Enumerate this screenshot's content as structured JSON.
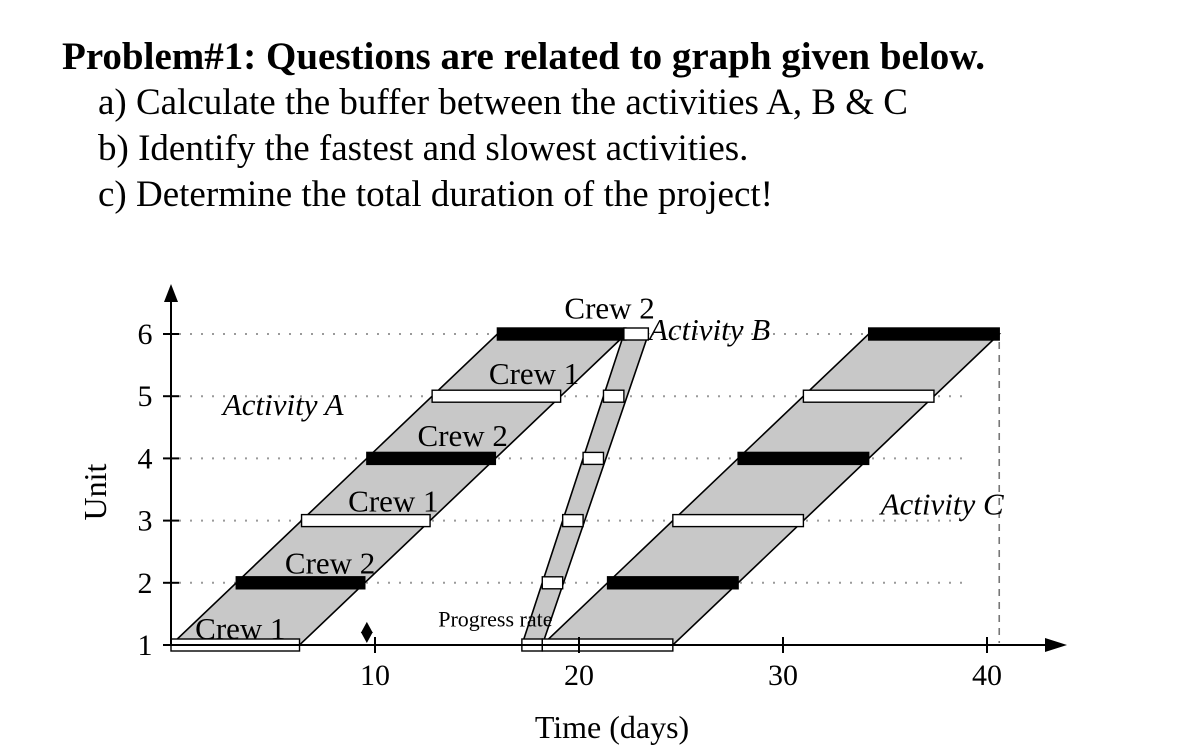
{
  "problem": {
    "title": "Problem#1: Questions are related to graph given below.",
    "questions": [
      "a) Calculate the buffer between the activities A, B & C",
      "b) Identify the fastest and slowest activities.",
      "c) Determine the total duration of the project!"
    ]
  },
  "chart_data": {
    "type": "area",
    "xlabel": "Time (days)",
    "ylabel": "Unit",
    "x_ticks": [
      10,
      20,
      30,
      40
    ],
    "y_ticks": [
      1,
      2,
      3,
      4,
      5,
      6
    ],
    "xlim": [
      0,
      43
    ],
    "ylim": [
      1,
      6.4
    ],
    "grid": "dotted horizontal lines at units 2-6",
    "series": [
      {
        "name": "Activity A",
        "fill": "#c8c8c8",
        "bars": [
          {
            "unit": 1,
            "start": 0,
            "end": 6.3,
            "crew": "Crew 1"
          },
          {
            "unit": 2,
            "start": 3.2,
            "end": 9.5,
            "crew": "Crew 2"
          },
          {
            "unit": 3,
            "start": 6.4,
            "end": 12.7,
            "crew": "Crew 1"
          },
          {
            "unit": 4,
            "start": 9.6,
            "end": 15.9,
            "crew": "Crew 2"
          },
          {
            "unit": 5,
            "start": 12.8,
            "end": 19.1,
            "crew": "Crew 1"
          },
          {
            "unit": 6,
            "start": 16.0,
            "end": 22.3,
            "crew": "Crew 2"
          }
        ]
      },
      {
        "name": "Activity B",
        "fill": "#c8c8c8",
        "bars": [
          {
            "unit": 1,
            "start": 17.2,
            "end": 18.2
          },
          {
            "unit": 2,
            "start": 18.2,
            "end": 19.2
          },
          {
            "unit": 3,
            "start": 19.2,
            "end": 20.2
          },
          {
            "unit": 4,
            "start": 20.2,
            "end": 21.2
          },
          {
            "unit": 5,
            "start": 21.2,
            "end": 22.2
          },
          {
            "unit": 6,
            "start": 22.2,
            "end": 23.4
          }
        ]
      },
      {
        "name": "Activity C",
        "fill": "#c8c8c8",
        "bars": [
          {
            "unit": 1,
            "start": 18.2,
            "end": 24.6
          },
          {
            "unit": 2,
            "start": 21.4,
            "end": 27.8
          },
          {
            "unit": 3,
            "start": 24.6,
            "end": 31.0
          },
          {
            "unit": 4,
            "start": 27.8,
            "end": 34.2
          },
          {
            "unit": 5,
            "start": 31.0,
            "end": 37.4
          },
          {
            "unit": 6,
            "start": 34.2,
            "end": 40.6
          }
        ]
      }
    ],
    "annotations": [
      {
        "text": "Activity A",
        "x": 5.5,
        "y": 4.7
      },
      {
        "text": "Activity B",
        "x": 26.4,
        "y": 5.9
      },
      {
        "text": "Activity C",
        "x": 37.8,
        "y": 3.1
      },
      {
        "text": "Crew 1",
        "x": 3.4,
        "y": 1.1
      },
      {
        "text": "Crew 2",
        "x": 7.8,
        "y": 2.15
      },
      {
        "text": "Crew 1",
        "x": 10.9,
        "y": 3.15
      },
      {
        "text": "Crew 2",
        "x": 14.3,
        "y": 4.2
      },
      {
        "text": "Crew 1",
        "x": 17.8,
        "y": 5.2
      },
      {
        "text": "Crew 2",
        "x": 21.5,
        "y": 6.25
      },
      {
        "text": "Progress rate",
        "x": 15.9,
        "y": 1.3
      }
    ],
    "progress_rate_marker": {
      "x": 9.6,
      "y_from": 1.0,
      "y_to": 1.5
    },
    "completion_marker": {
      "x": 40.6,
      "y": 6
    }
  }
}
